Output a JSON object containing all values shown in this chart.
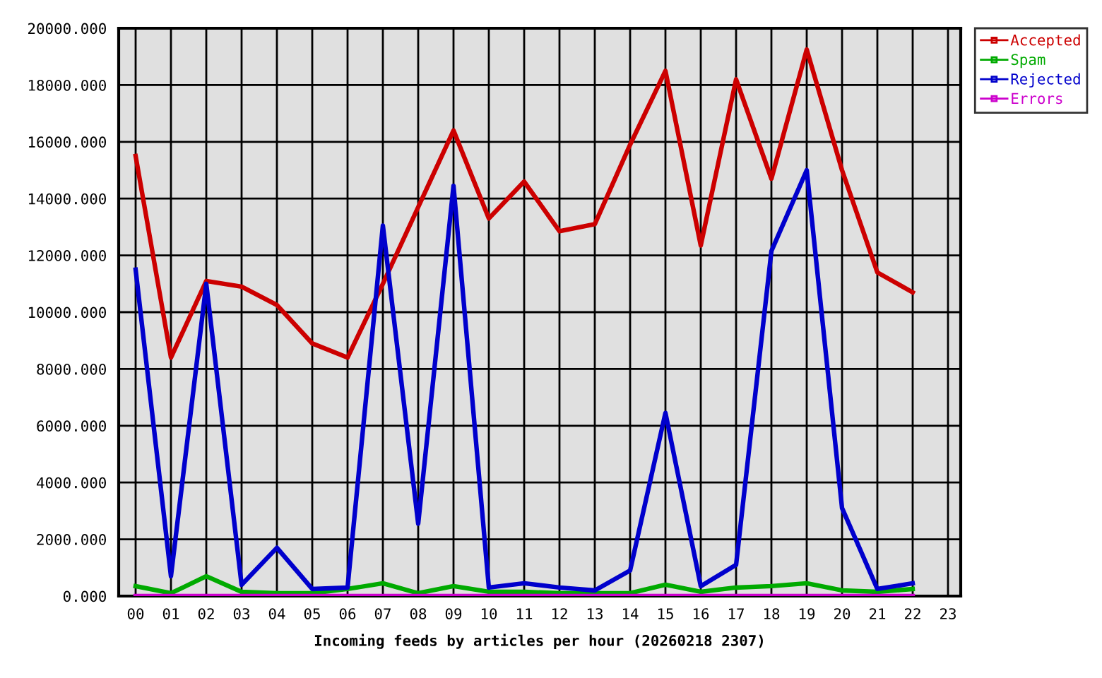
{
  "chart_data": {
    "type": "line",
    "xlabel": "Incoming feeds by articles per hour (20260218 2307)",
    "categories": [
      "00",
      "01",
      "02",
      "03",
      "04",
      "05",
      "06",
      "07",
      "08",
      "09",
      "10",
      "11",
      "12",
      "13",
      "14",
      "15",
      "16",
      "17",
      "18",
      "19",
      "20",
      "21",
      "22",
      "23"
    ],
    "series": [
      {
        "name": "Accepted",
        "color": "#cc0000",
        "values": [
          15500,
          8400,
          11100,
          10900,
          10250,
          8900,
          8400,
          11000,
          13700,
          16400,
          13300,
          14600,
          12850,
          13100,
          15900,
          18500,
          12350,
          18200,
          14700,
          19250,
          15000,
          11400,
          10700,
          null
        ]
      },
      {
        "name": "Spam",
        "color": "#00aa00",
        "values": [
          350,
          100,
          700,
          150,
          100,
          100,
          250,
          450,
          100,
          350,
          150,
          150,
          100,
          100,
          100,
          400,
          150,
          300,
          350,
          450,
          200,
          150,
          250,
          null
        ]
      },
      {
        "name": "Rejected",
        "color": "#0000cc",
        "values": [
          11500,
          700,
          11000,
          400,
          1700,
          250,
          300,
          13050,
          2550,
          14450,
          300,
          450,
          300,
          200,
          900,
          6450,
          350,
          1100,
          12150,
          15000,
          3100,
          250,
          450,
          null
        ]
      },
      {
        "name": "Errors",
        "color": "#cc00cc",
        "values": [
          0,
          0,
          0,
          0,
          0,
          0,
          0,
          0,
          0,
          0,
          0,
          0,
          0,
          0,
          0,
          0,
          0,
          0,
          0,
          0,
          0,
          0,
          0,
          null
        ]
      }
    ],
    "ylim": [
      0,
      20000
    ],
    "yticks": [
      {
        "value": 0,
        "label": "0.000"
      },
      {
        "value": 2000,
        "label": "2000.000"
      },
      {
        "value": 4000,
        "label": "4000.000"
      },
      {
        "value": 6000,
        "label": "6000.000"
      },
      {
        "value": 8000,
        "label": "8000.000"
      },
      {
        "value": 10000,
        "label": "10000.000"
      },
      {
        "value": 12000,
        "label": "12000.000"
      },
      {
        "value": 14000,
        "label": "14000.000"
      },
      {
        "value": 16000,
        "label": "16000.000"
      },
      {
        "value": 18000,
        "label": "18000.000"
      },
      {
        "value": 20000,
        "label": "20000.000"
      }
    ],
    "grid": true,
    "legend": "top right",
    "line_style": "solid"
  }
}
